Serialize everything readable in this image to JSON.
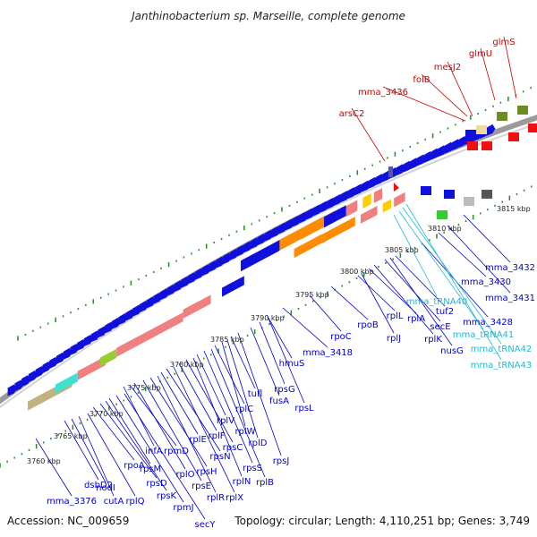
{
  "title": "Janthinobacterium sp. Marseille, complete genome",
  "footer": {
    "accession": "Accession: NC_009659",
    "summary": "Topology: circular; Length: 4,110,251 bp; Genes: 3,749"
  },
  "colors": {
    "blue_label": "#0000cc",
    "red_label": "#cc0000",
    "cyan_label": "#22b7d6",
    "gene_blue": "#1010dd",
    "orange": "#ff8c00",
    "pink": "#f08080",
    "ring": "#999999",
    "tick": "#2f8f2f"
  },
  "kbp_markers": [
    "3760 kbp",
    "3765 kbp",
    "3770 kbp",
    "3775 kbp",
    "3780 kbp",
    "3785 kbp",
    "3790 kbp",
    "3795 kbp",
    "3800 kbp",
    "3805 kbp",
    "3810 kbp",
    "3815 kbp"
  ],
  "red_labels": [
    "arsC2",
    "mma_3436",
    "folB",
    "mesJ2",
    "glmU",
    "glmS"
  ],
  "blue_labels": [
    "mma_3376",
    "dsbD2",
    "nodI",
    "cutA",
    "rplQ",
    "rpoA",
    "rpsD",
    "rpsK",
    "rpsM",
    "rpmJ",
    "secY",
    "infA",
    "rpmD",
    "rplO",
    "rpsE",
    "rpsH",
    "rplR",
    "rplE",
    "rpsN",
    "rplX",
    "rplF",
    "rpsC",
    "rplN",
    "rplV",
    "rpsS",
    "rplB",
    "rplC",
    "rplW",
    "rplD",
    "tufl",
    "rpsJ",
    "fusA",
    "rpsG",
    "rpsL",
    "hmuS",
    "mma_3418",
    "rpoC",
    "rpoB",
    "rplL",
    "rplJ",
    "rplA",
    "rplK",
    "secE",
    "nusG",
    "tuf2",
    "mma_3428",
    "mma_3430",
    "mma_3431",
    "mma_3432"
  ],
  "cyan_labels": [
    "mma_tRNA40",
    "mma_tRNA41",
    "mma_tRNA42",
    "mma_tRNA43"
  ]
}
